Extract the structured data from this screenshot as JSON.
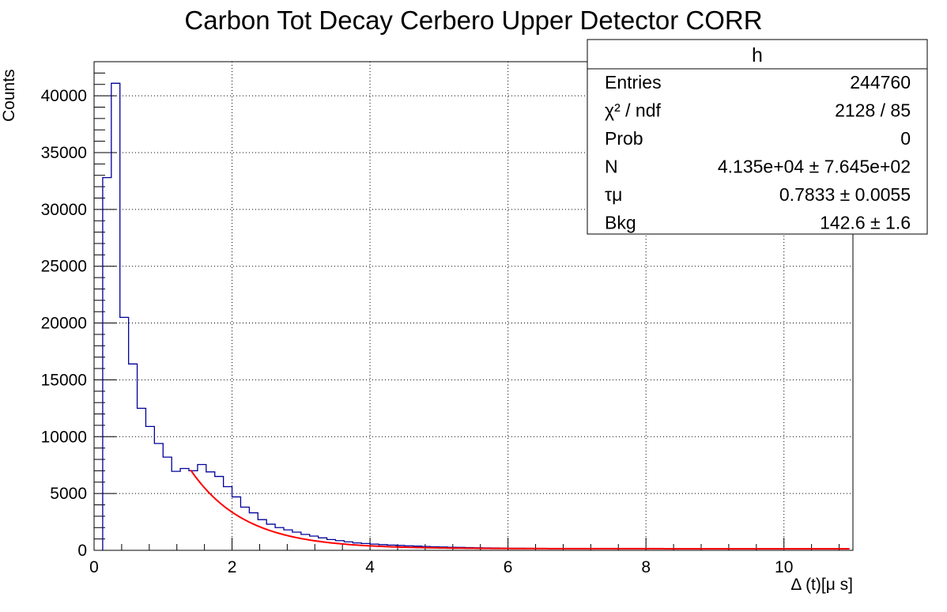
{
  "chart_data": {
    "type": "bar",
    "title": "Carbon Tot Decay Cerbero Upper Detector CORR",
    "xlabel": "Δ (t)[μ s]",
    "ylabel": "Counts",
    "xlim": [
      0,
      11
    ],
    "ylim": [
      0,
      43000
    ],
    "x_ticks": [
      0,
      2,
      4,
      6,
      8,
      10
    ],
    "y_ticks": [
      0,
      5000,
      10000,
      15000,
      20000,
      25000,
      30000,
      35000,
      40000
    ],
    "grid": true,
    "bin_width": 0.125,
    "histogram_color": "#000099",
    "fit_color": "#ff0000",
    "series": [
      {
        "kind": "histogram",
        "x_start": 0.125,
        "values": [
          32800,
          41100,
          20500,
          16400,
          12500,
          10900,
          9400,
          8200,
          6950,
          7200,
          7000,
          7550,
          6900,
          6500,
          5600,
          4700,
          3800,
          3300,
          2700,
          2300,
          2000,
          1800,
          1600,
          1400,
          1250,
          1100,
          950,
          850,
          750,
          650,
          600,
          550,
          500,
          460,
          430,
          400,
          370,
          340,
          310,
          290,
          270,
          255,
          240,
          225,
          215,
          205,
          195,
          185,
          178,
          172,
          166,
          162,
          158,
          155,
          152,
          150,
          148,
          147,
          146,
          145,
          144,
          144,
          143,
          143,
          143,
          142,
          142,
          142,
          142,
          142,
          142,
          142,
          142,
          142,
          142,
          142,
          142,
          142,
          142,
          142,
          142,
          142,
          142,
          142
        ]
      },
      {
        "kind": "fit",
        "function": "N*exp(-t/tau_mu)+Bkg",
        "fit_range": [
          1.4,
          10.95
        ],
        "N": 41350,
        "tau_mu": 0.7833,
        "Bkg": 142.6
      }
    ]
  },
  "stats_box": {
    "title": "h",
    "rows": [
      {
        "label": "Entries",
        "value": "244760"
      },
      {
        "label": "χ² / ndf",
        "value": "2128 / 85"
      },
      {
        "label": "Prob",
        "value": "0"
      },
      {
        "label": "N",
        "value": "4.135e+04 ± 7.645e+02"
      },
      {
        "label": "τμ",
        "value": "0.7833 ± 0.0055"
      },
      {
        "label": "Bkg",
        "value": "142.6 ± 1.6"
      }
    ]
  }
}
